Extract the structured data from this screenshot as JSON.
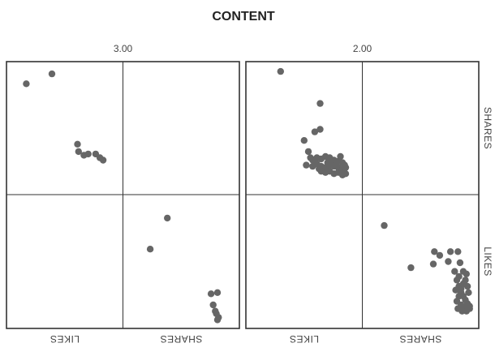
{
  "chart_data": {
    "type": "scatter",
    "title": "CONTENT",
    "variables": [
      "SHARES",
      "LIKES"
    ],
    "panels": [
      {
        "label": "3.00",
        "cells": [
          {
            "row": "SHARES",
            "col": "LIKES",
            "points": [
              [
                0.14,
                0.86
              ],
              [
                0.38,
                0.94
              ],
              [
                0.62,
                0.37
              ],
              [
                0.63,
                0.31
              ],
              [
                0.68,
                0.28
              ],
              [
                0.72,
                0.29
              ],
              [
                0.79,
                0.29
              ],
              [
                0.83,
                0.26
              ],
              [
                0.86,
                0.24
              ]
            ]
          },
          {
            "row": "LIKES",
            "col": "SHARES",
            "points": [
              [
                0.37,
                0.85
              ],
              [
                0.21,
                0.6
              ],
              [
                0.78,
                0.24
              ],
              [
                0.84,
                0.25
              ],
              [
                0.8,
                0.15
              ],
              [
                0.82,
                0.1
              ],
              [
                0.83,
                0.08
              ],
              [
                0.85,
                0.05
              ],
              [
                0.84,
                0.03
              ]
            ]
          }
        ]
      },
      {
        "label": "2.00",
        "cells": [
          {
            "row": "SHARES",
            "col": "LIKES",
            "points": [
              [
                0.28,
                0.96
              ],
              [
                0.65,
                0.7
              ],
              [
                0.6,
                0.47
              ],
              [
                0.65,
                0.49
              ],
              [
                0.5,
                0.4
              ],
              [
                0.54,
                0.31
              ],
              [
                0.52,
                0.2
              ],
              [
                0.58,
                0.24
              ],
              [
                0.62,
                0.26
              ],
              [
                0.66,
                0.25
              ],
              [
                0.7,
                0.27
              ],
              [
                0.74,
                0.26
              ],
              [
                0.78,
                0.24
              ],
              [
                0.82,
                0.23
              ],
              [
                0.86,
                0.22
              ],
              [
                0.58,
                0.19
              ],
              [
                0.62,
                0.21
              ],
              [
                0.66,
                0.19
              ],
              [
                0.7,
                0.18
              ],
              [
                0.74,
                0.2
              ],
              [
                0.78,
                0.19
              ],
              [
                0.82,
                0.18
              ],
              [
                0.86,
                0.17
              ],
              [
                0.89,
                0.18
              ],
              [
                0.66,
                0.15
              ],
              [
                0.7,
                0.14
              ],
              [
                0.74,
                0.15
              ],
              [
                0.78,
                0.13
              ],
              [
                0.82,
                0.14
              ],
              [
                0.86,
                0.12
              ],
              [
                0.89,
                0.13
              ],
              [
                0.76,
                0.23
              ],
              [
                0.84,
                0.27
              ],
              [
                0.72,
                0.22
              ],
              [
                0.8,
                0.21
              ],
              [
                0.88,
                0.2
              ],
              [
                0.6,
                0.22
              ],
              [
                0.56,
                0.26
              ],
              [
                0.64,
                0.17
              ]
            ]
          },
          {
            "row": "LIKES",
            "col": "SHARES",
            "points": [
              [
                0.16,
                0.79
              ],
              [
                0.41,
                0.45
              ],
              [
                0.62,
                0.48
              ],
              [
                0.68,
                0.55
              ],
              [
                0.63,
                0.58
              ],
              [
                0.78,
                0.58
              ],
              [
                0.76,
                0.5
              ],
              [
                0.85,
                0.58
              ],
              [
                0.87,
                0.49
              ],
              [
                0.82,
                0.42
              ],
              [
                0.84,
                0.35
              ],
              [
                0.86,
                0.3
              ],
              [
                0.88,
                0.25
              ],
              [
                0.9,
                0.22
              ],
              [
                0.92,
                0.19
              ],
              [
                0.94,
                0.16
              ],
              [
                0.96,
                0.14
              ],
              [
                0.92,
                0.13
              ],
              [
                0.88,
                0.15
              ],
              [
                0.84,
                0.18
              ],
              [
                0.86,
                0.22
              ],
              [
                0.88,
                0.28
              ],
              [
                0.9,
                0.32
              ],
              [
                0.92,
                0.35
              ],
              [
                0.94,
                0.3
              ],
              [
                0.95,
                0.25
              ],
              [
                0.93,
                0.4
              ],
              [
                0.9,
                0.42
              ],
              [
                0.86,
                0.38
              ],
              [
                0.83,
                0.27
              ],
              [
                0.85,
                0.12
              ],
              [
                0.89,
                0.1
              ],
              [
                0.93,
                0.1
              ],
              [
                0.96,
                0.12
              ]
            ]
          }
        ]
      }
    ],
    "xlim": [
      0,
      1
    ],
    "ylim": [
      0,
      1
    ]
  }
}
